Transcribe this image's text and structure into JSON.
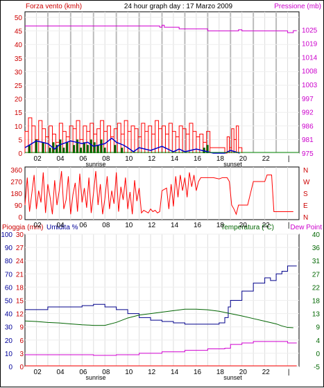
{
  "header": {
    "left_title": "Forza vento (kmh)",
    "center_title": "24 hour graph day : 17 Marzo 2009",
    "right_title": "Pressione (mb)"
  },
  "colors": {
    "wind": "#ff0000",
    "gust_dark": "#006400",
    "wind_avg": "#0000cd",
    "pressure": "#d000d0",
    "grid": "#cccccc",
    "temperature": "#006400",
    "dew_point": "#d000d0",
    "humidity": "#00008b",
    "rain": "#ff0000"
  },
  "x_axis": {
    "ticks": [
      "02",
      "04",
      "06",
      "08",
      "10",
      "12",
      "14",
      "16",
      "18",
      "20",
      "22",
      "|"
    ],
    "sunrise_label": "sunrise",
    "sunset_label": "sunset"
  },
  "chart_data": [
    {
      "type": "line",
      "name": "wind_pressure",
      "left_axis_ticks": [
        "50",
        "45",
        "40",
        "35",
        "30",
        "25",
        "20",
        "15",
        "10",
        "5",
        "0"
      ],
      "right_axis_ticks": [
        "1025",
        "1019",
        "1014",
        "1008",
        "1003",
        "997",
        "992",
        "986",
        "981",
        "975"
      ],
      "ylim_left": [
        0,
        50
      ],
      "ylim_right": [
        975,
        1030
      ],
      "pressure": {
        "x": [
          0,
          11.7,
          11.8,
          12.0,
          12.2,
          13.5,
          16.0,
          18.6,
          18.7,
          18.9,
          19.0,
          22.9,
          23.0,
          23.5
        ],
        "y": [
          1026.5,
          1026.5,
          1026.0,
          1026.8,
          1026.0,
          1025.3,
          1024.5,
          1024.5,
          1025.0,
          1025.0,
          1024.5,
          1024.5,
          1023.8,
          1024.6
        ]
      },
      "wind_speed": {
        "x": [
          0.0,
          0.3,
          0.6,
          0.9,
          1.2,
          1.5,
          1.8,
          2.1,
          2.4,
          2.7,
          3.0,
          3.3,
          3.6,
          3.9,
          4.2,
          4.5,
          4.8,
          5.1,
          5.4,
          5.7,
          6.0,
          6.3,
          6.6,
          6.9,
          7.2,
          7.5,
          7.8,
          8.1,
          8.4,
          8.7,
          9.0,
          9.3,
          9.6,
          9.9,
          10.2,
          10.5,
          10.8,
          11.1,
          11.4,
          11.7,
          12.0,
          12.3,
          12.6,
          12.9,
          13.2,
          13.5,
          13.8,
          14.1,
          14.4,
          14.7,
          15.0,
          15.3,
          15.6,
          15.9,
          16.2,
          17.5,
          17.7,
          17.9,
          18.1,
          18.3,
          18.5,
          18.7
        ],
        "y": [
          8,
          13,
          10,
          5,
          12,
          9,
          6,
          10,
          7,
          4,
          11,
          8,
          6,
          10,
          9,
          12,
          5,
          10,
          8,
          11,
          7,
          9,
          12,
          8,
          10,
          6,
          9,
          11,
          7,
          12,
          8,
          10,
          9,
          6,
          11,
          8,
          10,
          7,
          12,
          9,
          10,
          7,
          11,
          8,
          6,
          10,
          9,
          7,
          11,
          8,
          6,
          7,
          4,
          8,
          2,
          0,
          6,
          2,
          9,
          5,
          10,
          2
        ]
      },
      "wind_gust_dark": {
        "x": [
          0.3,
          0.9,
          1.5,
          2.1,
          2.4,
          2.7,
          3.0,
          3.3,
          3.6,
          4.2,
          4.5,
          4.8,
          5.1,
          5.4,
          5.7,
          6.0,
          6.3,
          6.6,
          6.9,
          7.8,
          8.4,
          15.6,
          15.9
        ],
        "y": [
          3,
          5,
          4,
          2,
          4,
          3,
          5,
          2,
          4,
          3,
          5,
          2,
          4,
          3,
          5,
          4,
          3,
          5,
          2,
          3,
          2,
          2,
          3
        ]
      },
      "wind_avg": {
        "x": [
          0.0,
          1.0,
          2.0,
          2.6,
          3.0,
          4.0,
          5.0,
          5.5,
          6.0,
          7.0,
          7.6,
          8.0,
          8.6,
          9.0,
          9.5,
          10.0,
          11.0,
          12.0,
          13.0,
          13.5,
          14.0,
          15.0,
          16.0,
          16.5,
          17.5,
          18.0,
          18.8
        ],
        "y": [
          2.0,
          4.5,
          3.5,
          1.5,
          3.0,
          4.5,
          3.5,
          4.0,
          2.5,
          3.5,
          5.5,
          4.0,
          3.0,
          2.0,
          0.5,
          2.0,
          1.0,
          2.5,
          0.5,
          1.5,
          0.5,
          1.5,
          0.5,
          0.0,
          0.0,
          1.0,
          0.0
        ]
      }
    },
    {
      "type": "line",
      "name": "wind_direction",
      "left_axis_ticks": [
        "360",
        "270",
        "180",
        "90",
        "0"
      ],
      "right_axis_ticks": [
        "N",
        "W",
        "S",
        "E",
        "N"
      ],
      "ylim": [
        0,
        360
      ],
      "x": [
        0.0,
        0.2,
        0.4,
        0.6,
        0.8,
        1.0,
        1.2,
        1.4,
        1.6,
        1.8,
        2.0,
        2.2,
        2.4,
        2.6,
        2.8,
        3.0,
        3.2,
        3.4,
        3.6,
        3.8,
        4.0,
        4.2,
        4.4,
        4.6,
        4.8,
        5.0,
        5.2,
        5.4,
        5.6,
        5.8,
        6.0,
        6.2,
        6.4,
        6.6,
        6.8,
        7.0,
        7.2,
        7.4,
        7.6,
        7.8,
        8.0,
        8.2,
        8.4,
        8.6,
        8.8,
        9.0,
        9.2,
        9.4,
        9.6,
        9.8,
        10.0,
        10.2,
        10.4,
        10.6,
        10.8,
        11.0,
        11.2,
        11.4,
        11.6,
        11.8,
        12.0,
        12.2,
        12.4,
        12.6,
        12.8,
        13.0,
        13.2,
        13.4,
        13.6,
        13.8,
        14.0,
        14.2,
        14.4,
        14.6,
        14.8,
        15.0,
        15.2,
        15.4,
        15.6,
        15.8,
        16.0,
        16.5,
        17.0,
        17.3,
        17.5,
        17.7,
        17.9,
        18.1,
        18.3,
        18.5,
        18.7,
        19.0,
        19.5,
        20.0,
        20.5,
        21.0,
        21.2,
        21.4,
        21.6,
        21.8,
        22.0,
        23.5
      ],
      "y": [
        90,
        300,
        40,
        180,
        320,
        60,
        200,
        110,
        340,
        30,
        250,
        150,
        20,
        280,
        90,
        200,
        350,
        60,
        130,
        310,
        20,
        170,
        260,
        40,
        330,
        110,
        220,
        70,
        300,
        30,
        180,
        350,
        90,
        250,
        20,
        140,
        310,
        60,
        200,
        100,
        340,
        40,
        230,
        130,
        300,
        60,
        190,
        20,
        280,
        120,
        220,
        30,
        50,
        40,
        30,
        60,
        40,
        50,
        30,
        40,
        200,
        210,
        220,
        60,
        250,
        80,
        310,
        150,
        320,
        200,
        300,
        150,
        340,
        230,
        320,
        200,
        270,
        300,
        300,
        300,
        300,
        300,
        290,
        300,
        300,
        300,
        270,
        90,
        60,
        20,
        90,
        90,
        90,
        270,
        270,
        270,
        320,
        320,
        320,
        40,
        40,
        40
      ]
    },
    {
      "type": "line",
      "name": "temperature_humidity",
      "left_label_rain": "Pioggia (mm)",
      "left_label_humidity": "Umidita %",
      "right_label_temp": "Temperatura (°C)",
      "right_label_dew": "Dew Point",
      "humidity_ticks": [
        "100",
        "90",
        "80",
        "70",
        "60",
        "50",
        "40",
        "30",
        "20",
        "10",
        "0"
      ],
      "rain_ticks": [
        "30",
        "27",
        "24",
        "21",
        "18",
        "15",
        "12",
        "9",
        "6",
        "3",
        "0"
      ],
      "temp_ticks": [
        "40",
        "36",
        "31",
        "27",
        "22",
        "18",
        "13",
        "9",
        "4",
        "0",
        "-5"
      ],
      "ylim_humidity": [
        0,
        100
      ],
      "ylim_temp": [
        -5,
        40
      ],
      "humidity": {
        "x": [
          0.0,
          1.0,
          2.0,
          3.0,
          4.0,
          5.0,
          6.0,
          6.5,
          7.0,
          8.0,
          9.0,
          10.0,
          11.0,
          12.0,
          13.0,
          14.0,
          15.0,
          16.0,
          17.0,
          17.5,
          17.8,
          18.0,
          19.0,
          20.0,
          21.0,
          21.5,
          22.0,
          22.5,
          23.0,
          23.5
        ],
        "y": [
          43,
          43,
          45,
          45,
          45,
          46,
          47,
          47,
          45,
          43,
          40,
          37,
          35,
          34,
          33,
          32,
          32,
          32,
          33,
          37,
          45,
          50,
          57,
          63,
          67,
          65,
          70,
          72,
          76,
          76
        ]
      },
      "temperature": {
        "x": [
          0.0,
          1.0,
          2.0,
          3.0,
          4.0,
          5.0,
          6.0,
          7.0,
          8.0,
          9.0,
          10.0,
          11.0,
          12.0,
          13.0,
          14.0,
          15.0,
          16.0,
          17.0,
          18.0,
          19.0,
          20.0,
          21.0,
          22.0,
          22.5,
          23.0,
          23.5
        ],
        "y": [
          10.5,
          10.3,
          10.0,
          9.8,
          9.5,
          9.2,
          9.0,
          9.0,
          10.0,
          11.5,
          12.5,
          13.0,
          13.5,
          14.0,
          14.5,
          14.5,
          14.3,
          13.8,
          13.0,
          12.2,
          11.3,
          10.4,
          9.5,
          8.8,
          8.3,
          8.2
        ]
      },
      "dew_point": {
        "x": [
          0.0,
          2.0,
          4.0,
          6.0,
          7.0,
          8.0,
          10.0,
          12.0,
          14.0,
          16.0,
          17.5,
          18.0,
          19.0,
          20.0,
          21.0,
          22.0,
          23.0,
          23.5
        ],
        "y": [
          -1.0,
          -1.0,
          -1.0,
          -1.2,
          -1.2,
          -1.0,
          -0.5,
          0.0,
          0.5,
          1.0,
          1.2,
          2.5,
          3.0,
          3.5,
          3.5,
          3.5,
          3.0,
          3.0
        ]
      },
      "rain": {
        "x": [
          0,
          23.5
        ],
        "y": [
          0,
          0
        ]
      }
    }
  ]
}
